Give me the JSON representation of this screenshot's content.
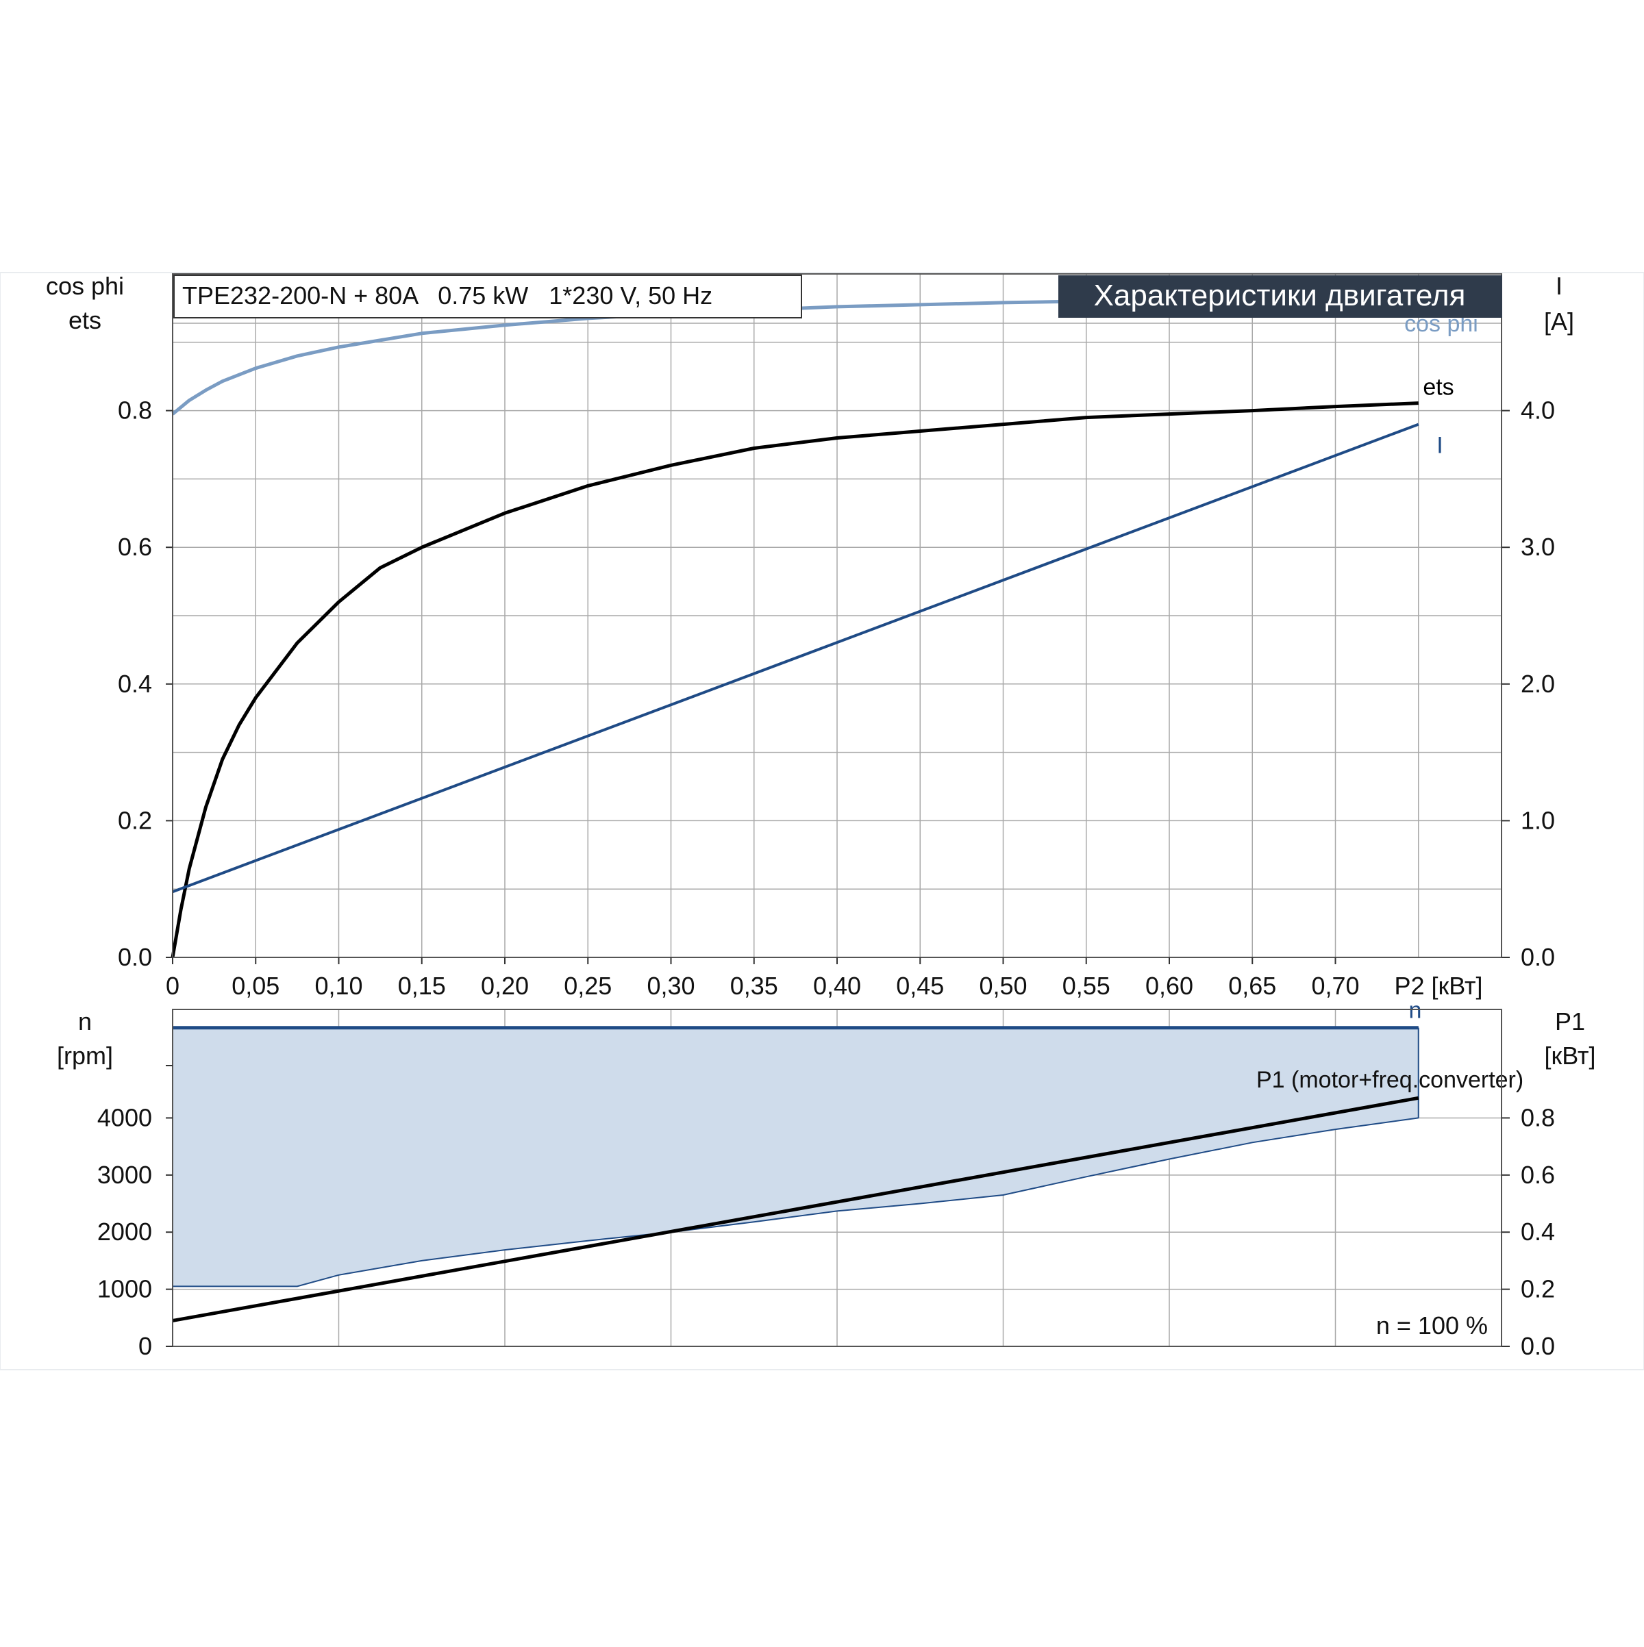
{
  "model_label": "TPE232-200-N + 80A   0.75 kW   1*230 V, 50 Hz",
  "header_title": "Характеристики двигателя",
  "colors": {
    "cosphi": "#7a9cc3",
    "ets": "#000000",
    "current": "#1f4b86",
    "speed": "#1f4b86",
    "p1": "#000000",
    "band_fill": "#cfdceb",
    "band_edge": "#1f4b86",
    "grid": "#a9a9a9",
    "title_bg": "#2f3b4b",
    "title_fg": "#ffffff"
  },
  "chart_data": [
    {
      "type": "line",
      "name": "upper",
      "left_axis_title": [
        "cos phi",
        "ets"
      ],
      "right_axis_title": [
        "I",
        "[A]"
      ],
      "x_axis_label": "P2 [кВт]",
      "x_ticks": [
        "0",
        "0,05",
        "0,10",
        "0,15",
        "0,20",
        "0,25",
        "0,30",
        "0,35",
        "0,40",
        "0,45",
        "0,50",
        "0,55",
        "0,60",
        "0,65",
        "0,70"
      ],
      "x_tick_values": [
        0,
        0.05,
        0.1,
        0.15,
        0.2,
        0.25,
        0.3,
        0.35,
        0.4,
        0.45,
        0.5,
        0.55,
        0.6,
        0.65,
        0.7
      ],
      "xlim": [
        0,
        0.8
      ],
      "y_left_ticks": [
        "0.0",
        "0.2",
        "0.4",
        "0.6",
        "0.8"
      ],
      "y_left_tick_values": [
        0,
        0.2,
        0.4,
        0.6,
        0.8
      ],
      "ylim_left": [
        0,
        1.0
      ],
      "y_right_ticks": [
        "0.0",
        "1.0",
        "2.0",
        "3.0",
        "4.0"
      ],
      "y_right_tick_values": [
        0,
        1,
        2,
        3,
        4
      ],
      "ylim_right": [
        0,
        5
      ],
      "grid": true,
      "series": [
        {
          "name": "cos phi",
          "axis": "left",
          "label": "cos phi",
          "x": [
            0,
            0.01,
            0.02,
            0.03,
            0.05,
            0.075,
            0.1,
            0.15,
            0.2,
            0.25,
            0.3,
            0.4,
            0.5,
            0.6,
            0.7,
            0.75
          ],
          "y": [
            0.795,
            0.815,
            0.83,
            0.843,
            0.862,
            0.88,
            0.893,
            0.913,
            0.925,
            0.935,
            0.942,
            0.952,
            0.958,
            0.962,
            0.966,
            0.967
          ]
        },
        {
          "name": "ets",
          "axis": "left",
          "label": "ets",
          "x": [
            0,
            0.005,
            0.01,
            0.02,
            0.03,
            0.04,
            0.05,
            0.075,
            0.1,
            0.125,
            0.15,
            0.2,
            0.25,
            0.3,
            0.35,
            0.4,
            0.45,
            0.5,
            0.55,
            0.6,
            0.65,
            0.7,
            0.75
          ],
          "y": [
            0,
            0.07,
            0.13,
            0.22,
            0.29,
            0.34,
            0.38,
            0.46,
            0.52,
            0.57,
            0.6,
            0.65,
            0.69,
            0.72,
            0.745,
            0.76,
            0.77,
            0.78,
            0.79,
            0.795,
            0.8,
            0.806,
            0.811
          ]
        },
        {
          "name": "I",
          "axis": "right",
          "label": "I",
          "x": [
            0,
            0.75
          ],
          "y": [
            0.48,
            3.9
          ]
        }
      ]
    },
    {
      "type": "area",
      "name": "lower",
      "left_axis_title": [
        "n",
        "[rpm]"
      ],
      "right_axis_title": [
        "P1",
        "[кВт]"
      ],
      "xlim": [
        0,
        0.8
      ],
      "y_left_ticks": [
        "0",
        "1000",
        "2000",
        "3000",
        "4000"
      ],
      "y_left_tick_values": [
        0,
        1000,
        2000,
        3000,
        4000
      ],
      "ylim_left": [
        0,
        5900
      ],
      "y_right_ticks": [
        "0.0",
        "0.2",
        "0.4",
        "0.6",
        "0.8"
      ],
      "y_right_tick_values": [
        0,
        0.2,
        0.4,
        0.6,
        0.8
      ],
      "ylim_right": [
        0,
        1.18
      ],
      "grid": true,
      "annotation": "n = 100 %",
      "series": [
        {
          "name": "n",
          "axis": "left",
          "label": "n",
          "x": [
            0,
            0.75
          ],
          "y": [
            5580,
            5580
          ]
        },
        {
          "name": "P1 (motor+freq.converter)",
          "axis": "right",
          "label": "P1 (motor+freq.converter)",
          "x": [
            0,
            0.75
          ],
          "y": [
            0.09,
            0.87
          ]
        },
        {
          "name": "n min",
          "axis": "left",
          "label": "",
          "x": [
            0,
            0.075,
            0.1,
            0.15,
            0.2,
            0.25,
            0.3,
            0.35,
            0.4,
            0.45,
            0.5,
            0.55,
            0.6,
            0.65,
            0.7,
            0.75
          ],
          "y": [
            1050,
            1050,
            1250,
            1500,
            1690,
            1850,
            2000,
            2180,
            2370,
            2500,
            2650,
            2970,
            3280,
            3570,
            3800,
            4000
          ]
        }
      ]
    }
  ]
}
